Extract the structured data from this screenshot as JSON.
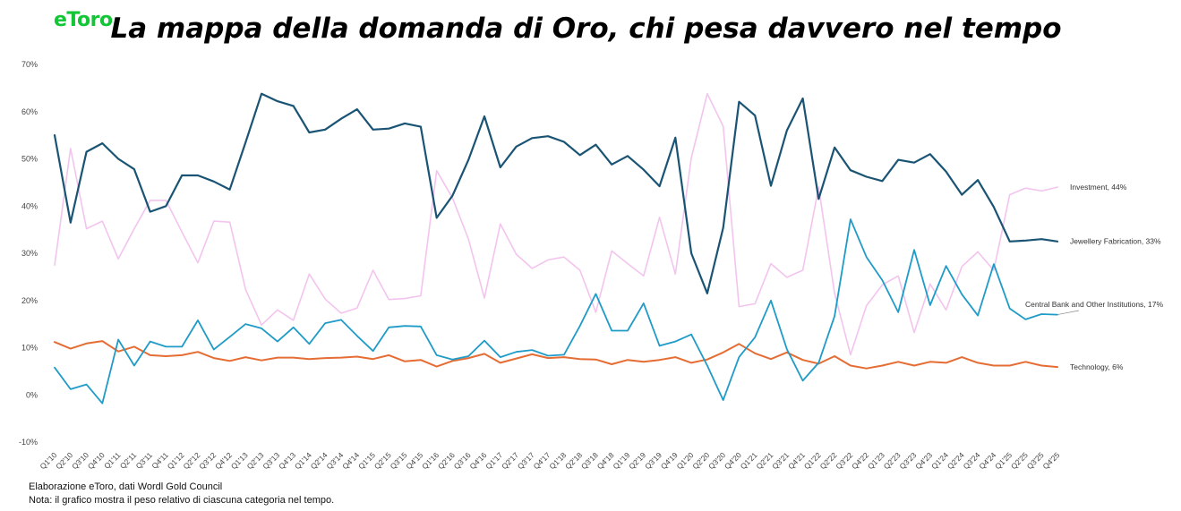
{
  "brand": {
    "logo_text": "eToro",
    "logo_color": "#13c636"
  },
  "header": {
    "title": "La mappa della domanda di Oro, chi pesa davvero nel tempo"
  },
  "footer": {
    "source": "Elaborazione eToro, dati Wordl Gold Council",
    "note": "Nota: il grafico mostra il peso relativo di ciascuna categoria nel tempo."
  },
  "chart_data": {
    "type": "line",
    "title": "La mappa della domanda di Oro, chi pesa davvero nel tempo",
    "xlabel": "",
    "ylabel": "",
    "ylim": [
      -10,
      70
    ],
    "yticks": [
      "-10%",
      "0%",
      "10%",
      "20%",
      "30%",
      "40%",
      "50%",
      "60%",
      "70%"
    ],
    "y_tick_values": [
      -10,
      0,
      10,
      20,
      30,
      40,
      50,
      60,
      70
    ],
    "grid": false,
    "legend": "end-of-line labels",
    "x": [
      "Q1'10",
      "Q2'10",
      "Q3'10",
      "Q4'10",
      "Q1'11",
      "Q2'11",
      "Q3'11",
      "Q4'11",
      "Q1'12",
      "Q2'12",
      "Q3'12",
      "Q4'12",
      "Q1'13",
      "Q2'13",
      "Q3'13",
      "Q4'13",
      "Q1'14",
      "Q2'14",
      "Q3'14",
      "Q4'14",
      "Q1'15",
      "Q2'15",
      "Q3'15",
      "Q4'15",
      "Q1'16",
      "Q2'16",
      "Q3'16",
      "Q4'16",
      "Q1'17",
      "Q2'17",
      "Q3'17",
      "Q4'17",
      "Q1'18",
      "Q2'18",
      "Q3'18",
      "Q4'18",
      "Q1'19",
      "Q2'19",
      "Q3'19",
      "Q4'19",
      "Q1'20",
      "Q2'20",
      "Q3'20",
      "Q4'20",
      "Q1'21",
      "Q2'21",
      "Q3'21",
      "Q4'21",
      "Q1'22",
      "Q2'22",
      "Q3'22",
      "Q4'22",
      "Q1'23",
      "Q2'23",
      "Q3'23",
      "Q4'23",
      "Q1'24",
      "Q2'24",
      "Q3'24",
      "Q4'24",
      "Q1'25",
      "Q2'25",
      "Q3'25",
      "Q4'25"
    ],
    "series": [
      {
        "name": "Investment, 44%",
        "color": "#f2c4ee",
        "values": [
          27.5,
          52.2,
          35.2,
          36.8,
          28.8,
          35.2,
          41.2,
          41.2,
          34.5,
          28.0,
          36.8,
          36.6,
          22.3,
          14.8,
          18.0,
          15.8,
          25.6,
          20.3,
          17.3,
          18.4,
          26.4,
          20.2,
          20.4,
          21.0,
          47.5,
          41.7,
          33.0,
          20.5,
          36.2,
          29.8,
          26.8,
          28.6,
          29.2,
          26.4,
          17.5,
          30.5,
          27.8,
          25.2,
          37.6,
          25.6,
          50.2,
          63.8,
          56.9,
          18.7,
          19.3,
          27.8,
          24.9,
          26.4,
          44.0,
          21.5,
          8.5,
          18.9,
          23.3,
          25.2,
          13.2,
          23.5,
          18.0,
          27.2,
          30.3,
          26.4,
          42.4,
          43.8,
          43.2,
          44.0
        ]
      },
      {
        "name": "Jewellery Fabrication, 33%",
        "color": "#1a5474",
        "values": [
          55.0,
          36.5,
          51.5,
          53.3,
          50.0,
          47.8,
          38.8,
          40.0,
          46.5,
          46.5,
          45.2,
          43.5,
          53.5,
          63.8,
          62.2,
          61.2,
          55.6,
          56.2,
          58.5,
          60.5,
          56.2,
          56.4,
          57.5,
          56.8,
          37.5,
          42.2,
          49.8,
          59.0,
          48.2,
          52.6,
          54.4,
          54.8,
          53.6,
          50.8,
          53.0,
          48.8,
          50.6,
          47.7,
          44.2,
          54.5,
          30.0,
          21.5,
          35.4,
          62.1,
          59.2,
          44.3,
          56.0,
          62.8,
          41.5,
          52.4,
          47.6,
          46.2,
          45.3,
          49.8,
          49.2,
          51.0,
          47.3,
          42.4,
          45.5,
          39.8,
          32.5,
          32.7,
          33.0,
          32.5
        ]
      },
      {
        "name": "Central Bank and Other Institutions, 17%",
        "color": "#1f9bc8",
        "values": [
          5.8,
          1.2,
          2.2,
          -1.8,
          11.7,
          6.2,
          11.3,
          10.2,
          10.2,
          15.8,
          9.6,
          12.3,
          15.0,
          14.1,
          11.3,
          14.3,
          10.8,
          15.2,
          15.9,
          12.5,
          9.3,
          14.3,
          14.6,
          14.5,
          8.4,
          7.5,
          8.2,
          11.5,
          8.0,
          9.1,
          9.5,
          8.3,
          8.5,
          14.6,
          21.4,
          13.6,
          13.6,
          19.4,
          10.4,
          11.3,
          12.8,
          6.2,
          -1.1,
          8.0,
          12.2,
          20.0,
          9.7,
          3.0,
          6.8,
          16.7,
          37.2,
          29.2,
          24.3,
          17.5,
          30.7,
          19.0,
          27.3,
          21.3,
          16.8,
          27.7,
          18.3,
          16.0,
          17.1,
          17.0
        ]
      },
      {
        "name": "Technology, 6%",
        "color": "#e56d34",
        "values": [
          11.2,
          9.8,
          10.9,
          11.4,
          9.2,
          10.2,
          8.4,
          8.2,
          8.4,
          9.1,
          7.8,
          7.2,
          8.0,
          7.3,
          7.9,
          7.9,
          7.6,
          7.8,
          7.9,
          8.1,
          7.6,
          8.4,
          7.1,
          7.4,
          6.0,
          7.2,
          7.8,
          8.7,
          6.8,
          7.7,
          8.6,
          7.8,
          8.0,
          7.6,
          7.5,
          6.5,
          7.4,
          7.0,
          7.4,
          8.0,
          6.8,
          7.5,
          9.0,
          10.8,
          8.8,
          7.6,
          9.0,
          7.4,
          6.6,
          8.2,
          6.2,
          5.6,
          6.2,
          7.0,
          6.2,
          7.0,
          6.8,
          8.0,
          6.8,
          6.2,
          6.2,
          7.0,
          6.2,
          5.9
        ]
      }
    ]
  }
}
